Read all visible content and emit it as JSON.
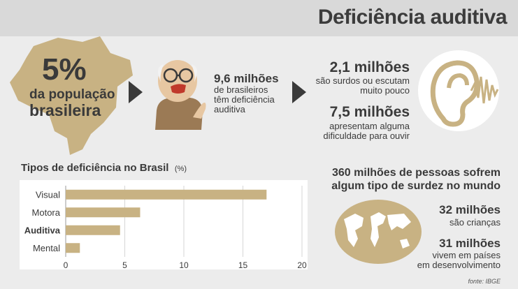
{
  "header": {
    "title": "Deficiência auditiva"
  },
  "stat_population": {
    "percent": "5%",
    "line1": "da população",
    "line2": "brasileira"
  },
  "stat_people": {
    "value": "9,6 milhões",
    "lines": [
      "de brasileiros",
      "têm deficiência",
      "auditiva"
    ]
  },
  "stat_deaf": {
    "value": "2,1 milhões",
    "lines": [
      "são surdos ou escutam",
      "muito pouco"
    ]
  },
  "stat_difficulty": {
    "value": "7,5 milhões",
    "lines": [
      "apresentam alguma",
      "dificuldade para ouvir"
    ]
  },
  "world": {
    "heading_lines": [
      "360 milhões de pessoas sofrem",
      "algum tipo de surdez no mundo"
    ],
    "children": {
      "value": "32 milhões",
      "label": "são crianças"
    },
    "developing": {
      "value": "31 milhões",
      "lines": [
        "vivem em países",
        "em desenvolvimento"
      ]
    }
  },
  "source": "fonte: IBGE",
  "colors": {
    "gold": "#c8b283",
    "dark": "#3a3a3a",
    "panel": "#ffffff",
    "background": "#ececec"
  },
  "icons": [
    "brazil-map-icon",
    "elderly-man-icon",
    "ear-soundwave-icon",
    "world-map-icon",
    "arrow-right-icon"
  ],
  "chart_data": {
    "type": "bar",
    "orientation": "horizontal",
    "title": "Tipos de deficiência no Brasil",
    "unit": "(%)",
    "categories": [
      "Visual",
      "Motora",
      "Auditiva",
      "Mental"
    ],
    "values": [
      17.0,
      6.3,
      4.6,
      1.2
    ],
    "highlight": "Auditiva",
    "xlim": [
      0,
      20
    ],
    "xticks": [
      0,
      5,
      10,
      15,
      20
    ],
    "grid": true,
    "bar_color": "#c8b283"
  }
}
